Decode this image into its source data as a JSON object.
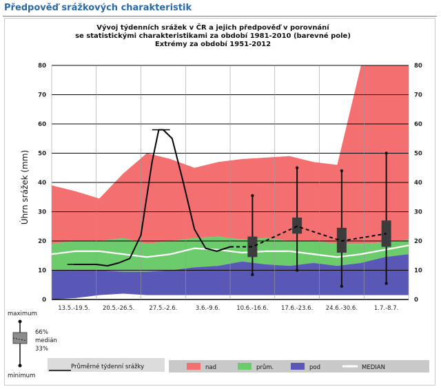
{
  "page_title": "Předpověď srážkových charakteristik",
  "chart_data": {
    "type": "line",
    "title_lines": [
      "Vývoj týdenních srážek v ČR a jejich předpověď v porovnání",
      "se statistickými charakteristikami za období 1981-2010 (barevné pole)",
      "Extrémy za období 1951-2012"
    ],
    "ylabel": "Úhrn srážek (mm)",
    "ylim": [
      0,
      80
    ],
    "yticks": [
      0,
      10,
      20,
      30,
      40,
      50,
      60,
      70,
      80
    ],
    "categories": [
      "13.5.-19.5.",
      "20.5.-26.5.",
      "27.5.-2.6.",
      "3.6.-9.6.",
      "10.6.-16.6.",
      "17.6.-23.6.",
      "24.6.-30.6.",
      "1.7.-8.7."
    ],
    "climatology": {
      "pod_bottom": [
        0,
        0.5,
        1.5,
        2,
        1.5,
        1.5,
        1.5,
        1.5,
        1.5,
        1.5,
        1.5,
        1.5,
        1.5,
        1.5,
        1.5,
        1.5
      ],
      "pod_top": [
        10,
        10,
        10,
        9.5,
        9.5,
        10,
        11,
        11.5,
        13,
        12,
        11.5,
        12.5,
        11.5,
        12.5,
        14.5,
        15.5
      ],
      "prum_top": [
        19,
        20,
        20,
        21,
        19,
        20,
        21,
        21.5,
        20.5,
        21,
        20,
        20,
        19,
        19,
        19.5,
        20.5
      ],
      "nad_top": [
        39,
        37,
        34.5,
        43,
        50,
        48,
        45,
        47,
        48,
        48.5,
        49,
        47,
        46,
        80,
        80,
        80
      ],
      "median": [
        15.5,
        16.5,
        16.5,
        15.5,
        14.5,
        15.5,
        17.5,
        17,
        16,
        16.5,
        16.5,
        15.5,
        14.5,
        15.5,
        17,
        18.5
      ]
    },
    "weekly_average": {
      "name": "Průměrné týdenní srážky",
      "observed": [
        {
          "t": 0,
          "v": 12
        },
        {
          "t": 0.5,
          "v": 12
        },
        {
          "t": 0.75,
          "v": 11.5
        },
        {
          "t": 1.0,
          "v": 12.5
        },
        {
          "t": 1.25,
          "v": 14
        },
        {
          "t": 1.5,
          "v": 22
        },
        {
          "t": 1.75,
          "v": 47
        },
        {
          "t": 1.9,
          "v": 58
        },
        {
          "t": 2.0,
          "v": 58
        },
        {
          "t": 2.2,
          "v": 55
        },
        {
          "t": 2.45,
          "v": 40
        },
        {
          "t": 2.7,
          "v": 24
        },
        {
          "t": 2.95,
          "v": 17.5
        },
        {
          "t": 3.2,
          "v": 16.5
        },
        {
          "t": 3.5,
          "v": 18
        }
      ],
      "forecast": [
        18,
        25,
        20,
        22.5
      ],
      "forecast_from": 3.5
    },
    "forecast_boxes": [
      {
        "category": "10.6.-16.6.",
        "min": 8.5,
        "p33": 14.5,
        "median": 18,
        "p66": 21.5,
        "max": 35.5
      },
      {
        "category": "17.6.-23.6.",
        "min": 10,
        "p33": 22.5,
        "median": 25,
        "p66": 28,
        "max": 45
      },
      {
        "category": "24.6.-30.6.",
        "min": 4.5,
        "p33": 16,
        "median": 20,
        "p66": 24.5,
        "max": 44
      },
      {
        "category": "1.7.-8.7.",
        "min": 5.5,
        "p33": 18,
        "median": 22.5,
        "p66": 27,
        "max": 50
      }
    ],
    "legend": {
      "line_label": "Průměrné týdenní srážky",
      "items": [
        {
          "label": "nad",
          "color": "#f47070"
        },
        {
          "label": "prům.",
          "color": "#6ccc6c"
        },
        {
          "label": "pod",
          "color": "#5a58b6"
        },
        {
          "label": "MEDIAN",
          "color": "#ffffff"
        }
      ]
    },
    "box_key": {
      "maximum": "maximum",
      "p66": "66%",
      "median": "medián",
      "p33": "33%",
      "minimum": "minimum"
    },
    "colors": {
      "nad": "#f47070",
      "prum": "#6ccc6c",
      "pod": "#5a58b6",
      "median": "#ffffff",
      "line": "#000000",
      "box": "#3c3c3c"
    }
  }
}
